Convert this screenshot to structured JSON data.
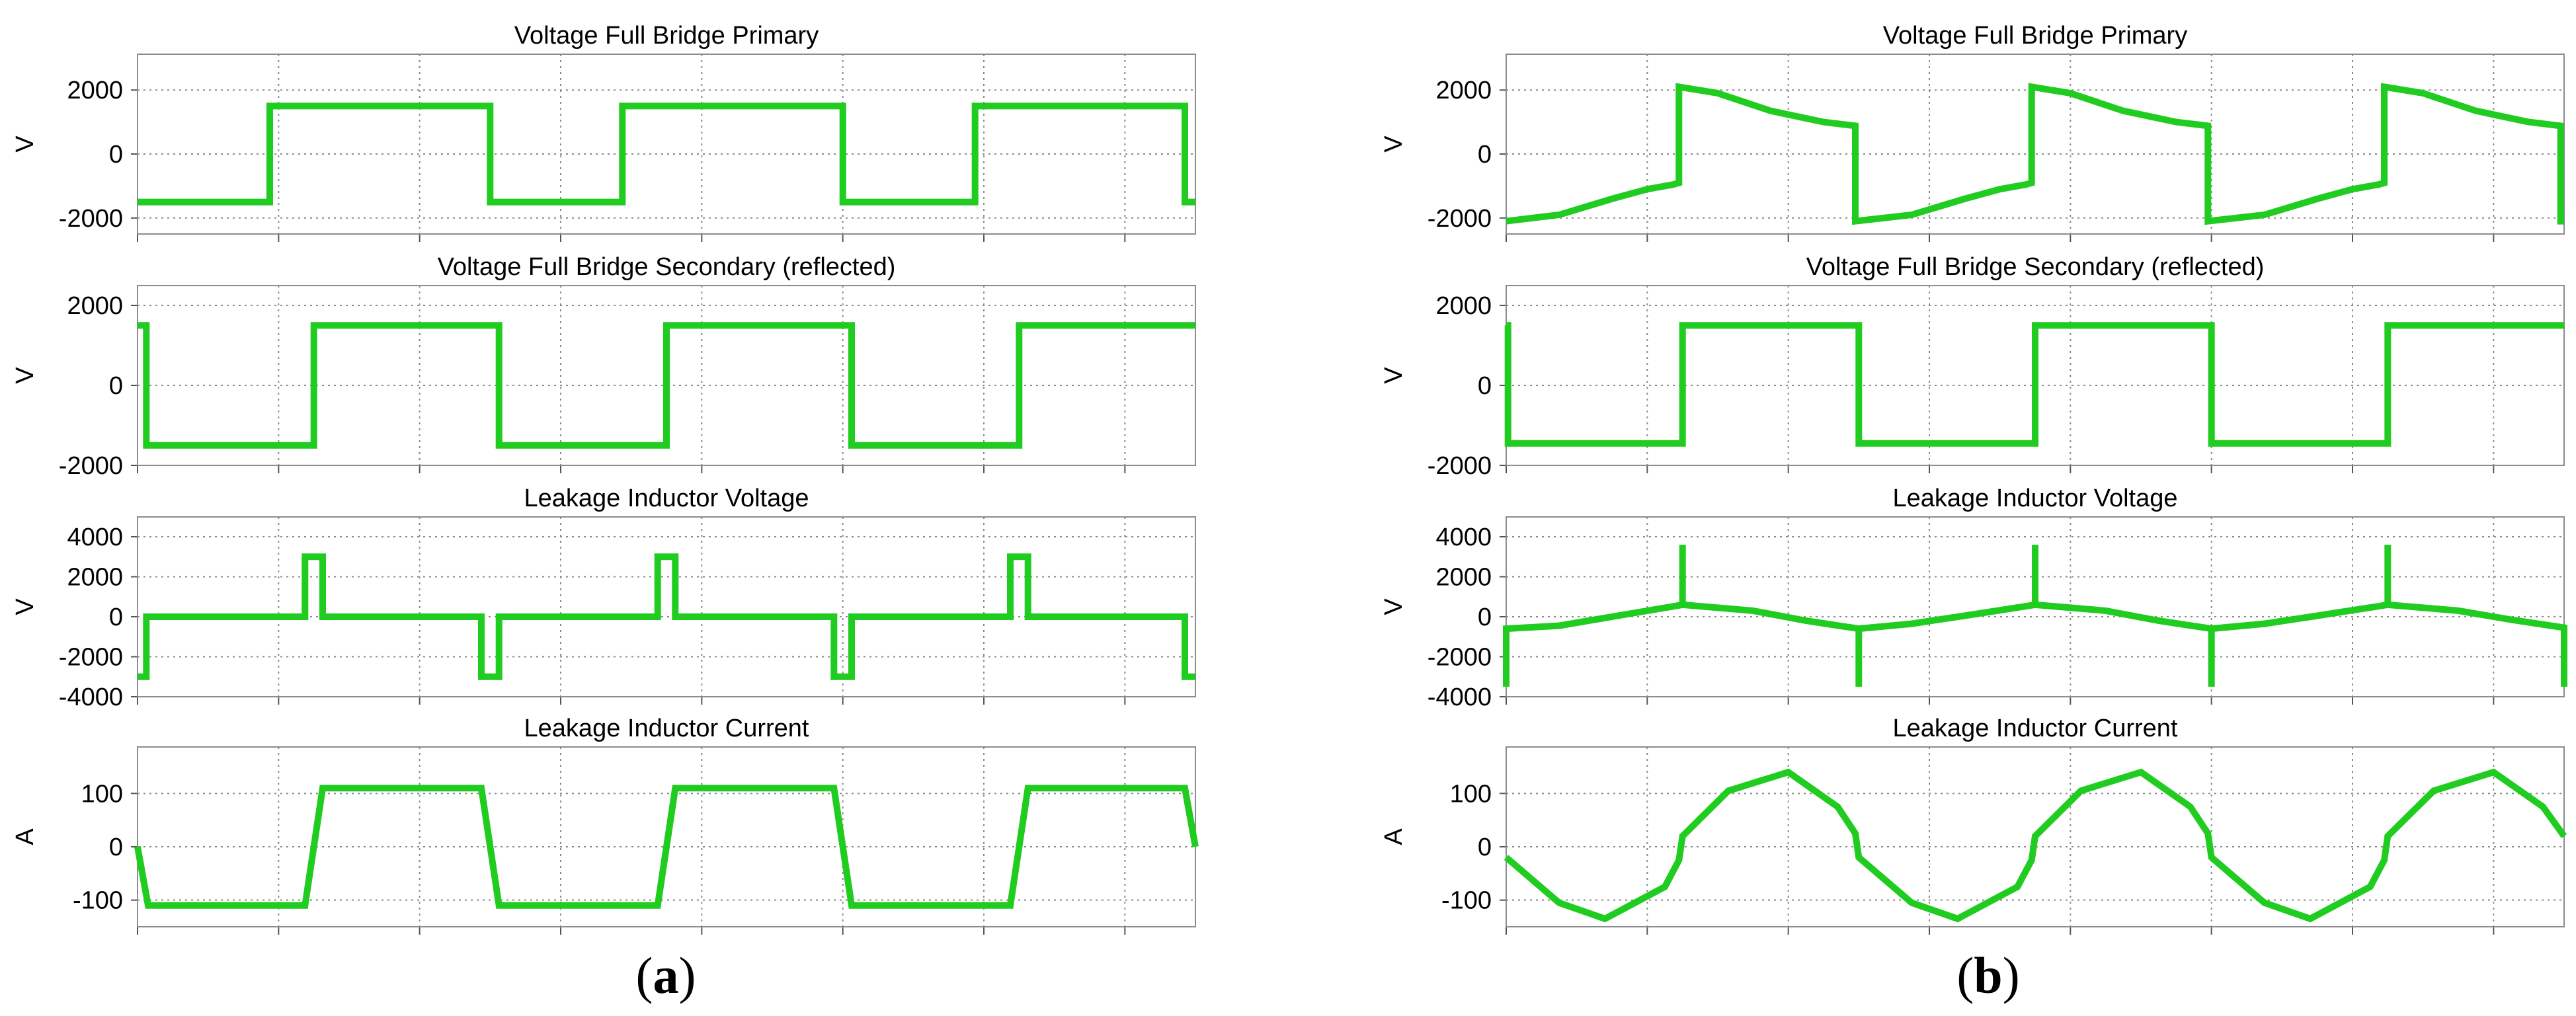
{
  "chart_data": [
    {
      "type": "line",
      "title": "Voltage Full Bridge Primary",
      "ylabel": "V",
      "ylim": [
        -2500,
        2500
      ],
      "yticks": [
        -2000,
        0,
        2000
      ],
      "yticklabels": [
        "-2000",
        "0",
        "2000"
      ],
      "xlim": [
        0,
        3
      ],
      "series": [
        {
          "color": "#1fcc1f",
          "x": [
            0,
            0.3,
            0.375,
            0.375,
            0.4,
            1.0,
            1.0,
            1.375,
            1.375,
            1.4,
            2.0,
            2.0,
            2.375,
            2.375,
            2.4,
            2.97,
            2.97,
            3.0
          ],
          "y": [
            -1500,
            -1500,
            -1500,
            1500,
            1500,
            1500,
            -1500,
            -1500,
            1500,
            1500,
            1500,
            -1500,
            -1500,
            1500,
            1500,
            1500,
            -1500,
            -1500
          ]
        }
      ]
    },
    {
      "type": "line",
      "title": "Voltage Full Bridge Secondary (reflected)",
      "ylabel": "V",
      "ylim": [
        -2000,
        2000
      ],
      "yticks": [
        -2000,
        0,
        2000
      ],
      "yticklabels": [
        "-2000",
        "0",
        "2000"
      ],
      "xlim": [
        0,
        3
      ],
      "series": [
        {
          "color": "#1fcc1f",
          "x": [
            0,
            0.025,
            0.025,
            0.5,
            0.5,
            1.025,
            1.025,
            1.5,
            1.5,
            2.025,
            2.025,
            2.5,
            2.5,
            3.0
          ],
          "y": [
            1500,
            1500,
            -1500,
            -1500,
            1500,
            1500,
            -1500,
            -1500,
            1500,
            1500,
            -1500,
            -1500,
            1500,
            1500
          ]
        }
      ]
    },
    {
      "type": "line",
      "title": "Leakage Inductor Voltage",
      "ylabel": "V",
      "ylim": [
        -4000,
        4000
      ],
      "yticks": [
        -4000,
        -2000,
        0,
        2000,
        4000
      ],
      "yticklabels": [
        "-4000",
        "-2000",
        "0",
        "2000",
        "4000"
      ],
      "xlim": [
        0,
        3
      ],
      "series": [
        {
          "color": "#1fcc1f",
          "x": [
            0,
            0.025,
            0.025,
            0.475,
            0.475,
            0.525,
            0.525,
            0.975,
            0.975,
            1.025,
            1.025,
            1.475,
            1.475,
            1.525,
            1.525,
            1.975,
            1.975,
            2.025,
            2.025,
            2.475,
            2.475,
            2.525,
            2.525,
            2.97,
            2.97,
            3.0
          ],
          "y": [
            -3000,
            -3000,
            0,
            0,
            3000,
            3000,
            0,
            0,
            -3000,
            -3000,
            0,
            0,
            3000,
            3000,
            0,
            0,
            -3000,
            -3000,
            0,
            0,
            3000,
            3000,
            0,
            0,
            -3000,
            -3000
          ]
        }
      ]
    },
    {
      "type": "line",
      "title": "Leakage Inductor Current",
      "ylabel": "A",
      "ylim": [
        -150,
        150
      ],
      "yticks": [
        -100,
        0,
        100
      ],
      "yticklabels": [
        "-100",
        "0",
        "100"
      ],
      "xlim": [
        0,
        3
      ],
      "series": [
        {
          "color": "#1fcc1f",
          "x": [
            0,
            0.03,
            0.475,
            0.525,
            0.975,
            1.025,
            1.475,
            1.525,
            1.975,
            2.025,
            2.475,
            2.525,
            2.97,
            3.0
          ],
          "y": [
            0,
            -110,
            -110,
            110,
            110,
            -110,
            -110,
            110,
            110,
            -110,
            -110,
            110,
            110,
            0
          ]
        }
      ]
    },
    {
      "type": "line",
      "title": "Voltage Full Bridge Primary",
      "ylabel": "V",
      "ylim": [
        -2500,
        2500
      ],
      "yticks": [
        -2000,
        0,
        2000
      ],
      "yticklabels": [
        "-2000",
        "0",
        "2000"
      ],
      "xlim": [
        0,
        3
      ],
      "series": [
        {
          "color": "#1fcc1f",
          "x": [
            0,
            0.15,
            0.3,
            0.4,
            0.475,
            0.49,
            0.49,
            0.6,
            0.75,
            0.9,
            0.975,
            0.99,
            0.99,
            1.15,
            1.3,
            1.4,
            1.475,
            1.49,
            1.49,
            1.6,
            1.75,
            1.9,
            1.975,
            1.99,
            1.99,
            2.15,
            2.3,
            2.4,
            2.475,
            2.49,
            2.49,
            2.6,
            2.75,
            2.9,
            2.99,
            2.99,
            3.0
          ],
          "y": [
            -2100,
            -1900,
            -1400,
            -1100,
            -950,
            -900,
            2100,
            1900,
            1350,
            1000,
            900,
            880,
            -2100,
            -1900,
            -1400,
            -1100,
            -950,
            -900,
            2100,
            1900,
            1350,
            1000,
            900,
            880,
            -2100,
            -1900,
            -1400,
            -1100,
            -950,
            -900,
            2100,
            1900,
            1350,
            1000,
            880,
            -2100,
            -2100
          ]
        }
      ]
    },
    {
      "type": "line",
      "title": "Voltage Full Bridge Secondary (reflected)",
      "ylabel": "V",
      "ylim": [
        -2000,
        2000
      ],
      "yticks": [
        -2000,
        0,
        2000
      ],
      "yticklabels": [
        "-2000",
        "0",
        "2000"
      ],
      "xlim": [
        0,
        3
      ],
      "series": [
        {
          "color": "#1fcc1f",
          "x": [
            0,
            0.005,
            0.005,
            0.5,
            0.5,
            1.0,
            1.0,
            1.5,
            1.5,
            2.0,
            2.0,
            2.5,
            2.5,
            3.0
          ],
          "y": [
            1500,
            1500,
            -1450,
            -1450,
            1500,
            1500,
            -1450,
            -1450,
            1500,
            1500,
            -1450,
            -1450,
            1500,
            1500
          ]
        }
      ]
    },
    {
      "type": "line",
      "title": "Leakage Inductor Voltage",
      "ylabel": "V",
      "ylim": [
        -4000,
        4000
      ],
      "yticks": [
        -4000,
        -2000,
        0,
        2000,
        4000
      ],
      "yticklabels": [
        "-4000",
        "-2000",
        "0",
        "2000",
        "4000"
      ],
      "xlim": [
        0,
        3
      ],
      "series": [
        {
          "color": "#1fcc1f",
          "x": [
            0,
            0,
            0.15,
            0.3,
            0.5,
            0.5,
            0.5,
            0.7,
            0.85,
            1.0,
            1.0,
            1.0,
            1.15,
            1.3,
            1.5,
            1.5,
            1.5,
            1.7,
            1.85,
            2.0,
            2.0,
            2.0,
            2.15,
            2.3,
            2.5,
            2.5,
            2.5,
            2.7,
            2.85,
            3.0,
            3.0
          ],
          "y": [
            -3500,
            -600,
            -450,
            0,
            600,
            3600,
            600,
            300,
            -200,
            -600,
            -3500,
            -600,
            -350,
            50,
            600,
            3600,
            600,
            300,
            -200,
            -600,
            -3500,
            -600,
            -350,
            50,
            600,
            3600,
            600,
            300,
            -150,
            -550,
            -3500
          ]
        }
      ]
    },
    {
      "type": "line",
      "title": "Leakage Inductor Current",
      "ylabel": "A",
      "ylim": [
        -150,
        150
      ],
      "yticks": [
        -100,
        0,
        100
      ],
      "yticklabels": [
        "-100",
        "0",
        "100"
      ],
      "xlim": [
        0,
        3
      ],
      "series": [
        {
          "color": "#1fcc1f",
          "x": [
            0,
            0.15,
            0.28,
            0.45,
            0.49,
            0.5,
            0.63,
            0.8,
            0.94,
            0.99,
            1.0,
            1.15,
            1.28,
            1.45,
            1.49,
            1.5,
            1.63,
            1.8,
            1.94,
            1.99,
            2.0,
            2.15,
            2.28,
            2.45,
            2.49,
            2.5,
            2.63,
            2.8,
            2.94,
            3.0
          ],
          "y": [
            -20,
            -105,
            -135,
            -75,
            -25,
            20,
            105,
            140,
            75,
            25,
            -20,
            -105,
            -135,
            -75,
            -25,
            20,
            105,
            140,
            75,
            25,
            -20,
            -105,
            -135,
            -75,
            -25,
            20,
            105,
            140,
            75,
            20
          ]
        }
      ]
    }
  ],
  "subfigures": [
    {
      "label_open": "(",
      "label_letter": "a",
      "label_close": ")"
    },
    {
      "label_open": "(",
      "label_letter": "b",
      "label_close": ")"
    }
  ]
}
